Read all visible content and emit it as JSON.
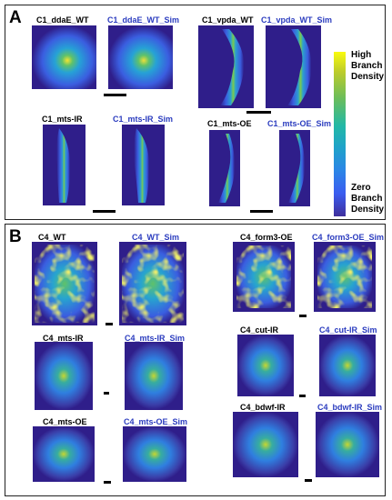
{
  "panels": {
    "a": {
      "letter": "A",
      "images": [
        {
          "label": "C1_ddaE_WT"
        },
        {
          "label": "C1_ddaE_WT_Sim"
        },
        {
          "label": "C1_vpda_WT"
        },
        {
          "label": "C1_vpda_WT_Sim"
        },
        {
          "label": "C1_mts-IR"
        },
        {
          "label": "C1_mts-IR_Sim"
        },
        {
          "label": "C1_mts-OE"
        },
        {
          "label": "C1_mts-OE_Sim"
        }
      ]
    },
    "b": {
      "letter": "B",
      "images": [
        {
          "label": "C4_WT"
        },
        {
          "label": "C4_WT_Sim"
        },
        {
          "label": "C4_form3-OE"
        },
        {
          "label": "C4_form3-OE_Sim"
        },
        {
          "label": "C4_mts-IR"
        },
        {
          "label": "C4_mts-IR_Sim"
        },
        {
          "label": "C4_cut-IR"
        },
        {
          "label": "C4_cut-IR_Sim"
        },
        {
          "label": "C4_mts-OE"
        },
        {
          "label": "C4_mts-OE_Sim"
        },
        {
          "label": "C4_bdwf-IR"
        },
        {
          "label": "C4_bdwf-IR_Sim"
        }
      ]
    }
  },
  "colorbar": {
    "top_label": "High\nBranch\nDensity",
    "top_lines": [
      "High",
      "Branch",
      "Density"
    ],
    "bottom_lines": [
      "Zero",
      "Branch",
      "Density"
    ],
    "colors": [
      "#f9fb0e",
      "#6cbd5a",
      "#22b8a6",
      "#2b86e6",
      "#3f2f9c"
    ]
  }
}
